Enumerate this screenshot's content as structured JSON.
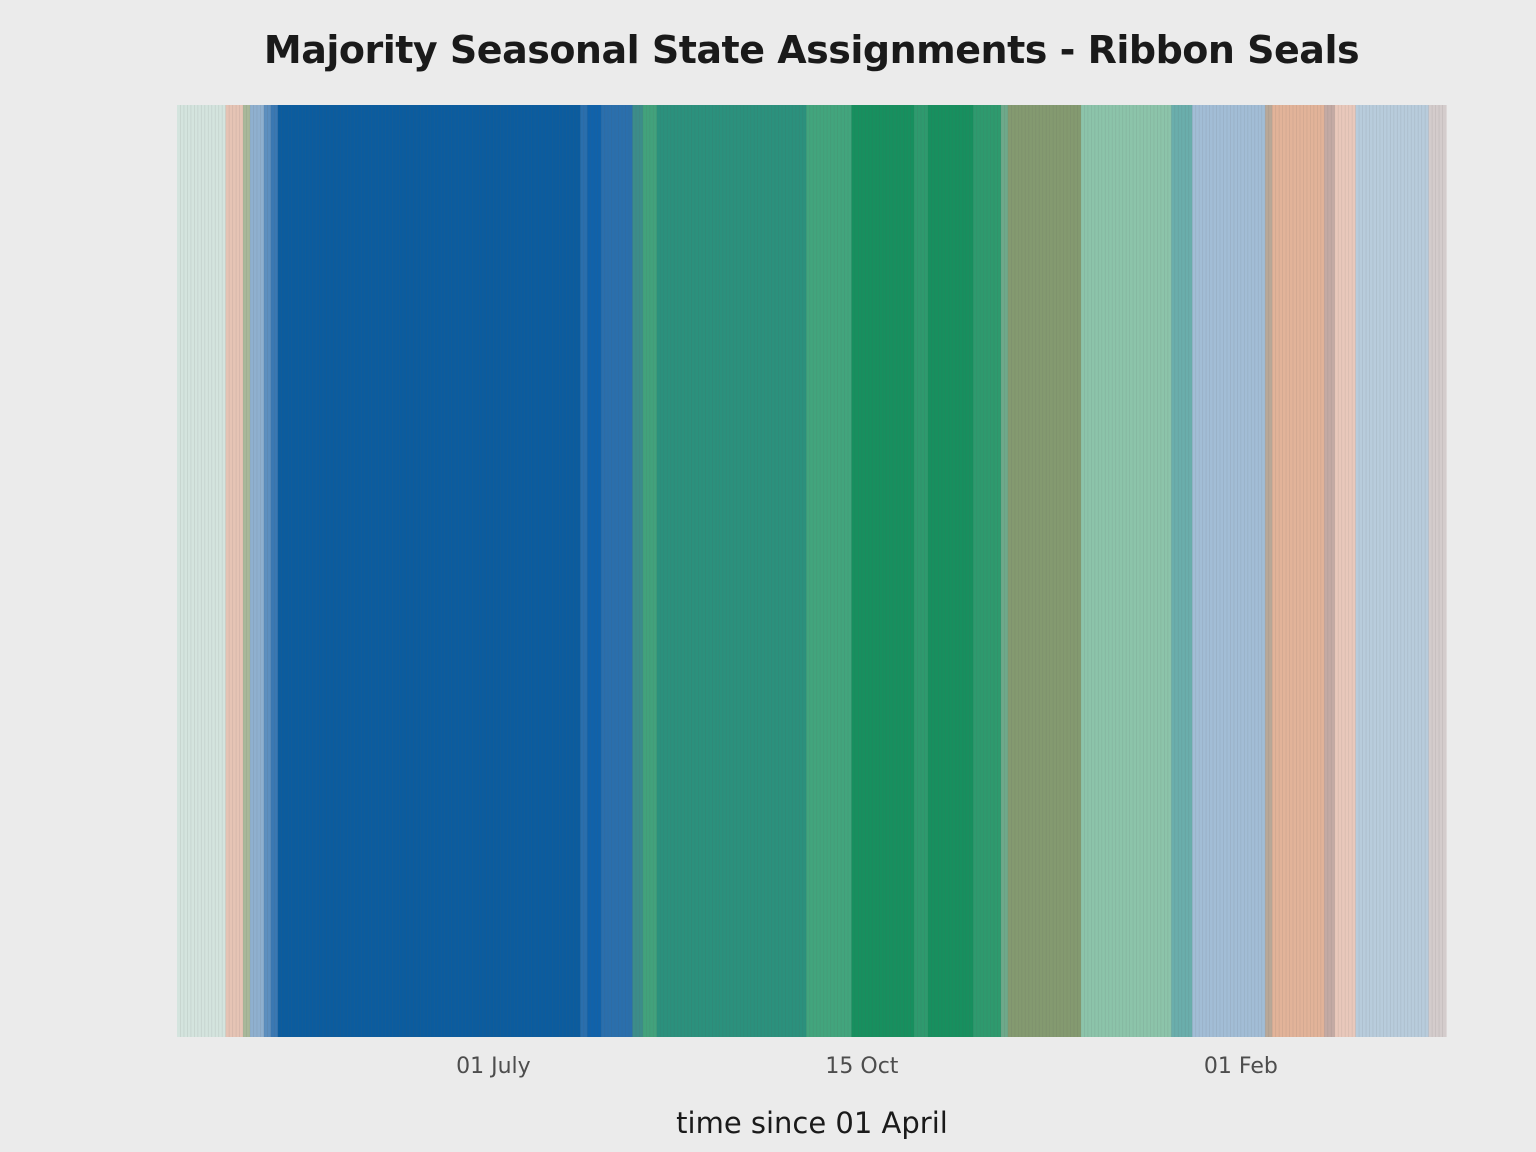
{
  "chart_data": {
    "type": "heatmap",
    "title": "Majority Seasonal State Assignments - Ribbon Seals",
    "xlabel": "time since 01 April",
    "ylabel": "",
    "x_ticks": [
      {
        "label": "01 July",
        "day": 91
      },
      {
        "label": "15 Oct",
        "day": 197
      },
      {
        "label": "01 Feb",
        "day": 306
      }
    ],
    "xlim": [
      0,
      365
    ],
    "grid": false,
    "legend": "none",
    "segments": [
      {
        "start": 0,
        "end": 14,
        "color": "#d4e4de"
      },
      {
        "start": 14,
        "end": 19,
        "color": "#e6c4b5"
      },
      {
        "start": 19,
        "end": 21,
        "color": "#a8b89a"
      },
      {
        "start": 21,
        "end": 25,
        "color": "#8fb0cf"
      },
      {
        "start": 25,
        "end": 27,
        "color": "#5d8fbf"
      },
      {
        "start": 27,
        "end": 29,
        "color": "#3a78b3"
      },
      {
        "start": 29,
        "end": 116,
        "color": "#0b5c9f"
      },
      {
        "start": 116,
        "end": 118,
        "color": "#2a6fad"
      },
      {
        "start": 118,
        "end": 122,
        "color": "#1062ab"
      },
      {
        "start": 122,
        "end": 131,
        "color": "#2a6fad"
      },
      {
        "start": 131,
        "end": 134,
        "color": "#3c8d8a"
      },
      {
        "start": 134,
        "end": 138,
        "color": "#42a27c"
      },
      {
        "start": 138,
        "end": 181,
        "color": "#2b917d"
      },
      {
        "start": 181,
        "end": 194,
        "color": "#42a57d"
      },
      {
        "start": 194,
        "end": 212,
        "color": "#17905f"
      },
      {
        "start": 212,
        "end": 216,
        "color": "#2e9a6e"
      },
      {
        "start": 216,
        "end": 229,
        "color": "#17905f"
      },
      {
        "start": 229,
        "end": 237,
        "color": "#2e9a6e"
      },
      {
        "start": 237,
        "end": 239,
        "color": "#6ea98a"
      },
      {
        "start": 239,
        "end": 260,
        "color": "#849a70"
      },
      {
        "start": 260,
        "end": 286,
        "color": "#8cc4aa"
      },
      {
        "start": 286,
        "end": 292,
        "color": "#6aaeac"
      },
      {
        "start": 292,
        "end": 313,
        "color": "#a2bdd6"
      },
      {
        "start": 313,
        "end": 315,
        "color": "#b9a898"
      },
      {
        "start": 315,
        "end": 330,
        "color": "#e2b399"
      },
      {
        "start": 330,
        "end": 333,
        "color": "#c4aaa4"
      },
      {
        "start": 333,
        "end": 339,
        "color": "#e9c8bb"
      },
      {
        "start": 339,
        "end": 360,
        "color": "#b8ccdc"
      },
      {
        "start": 360,
        "end": 365,
        "color": "#d4cccc"
      }
    ]
  }
}
